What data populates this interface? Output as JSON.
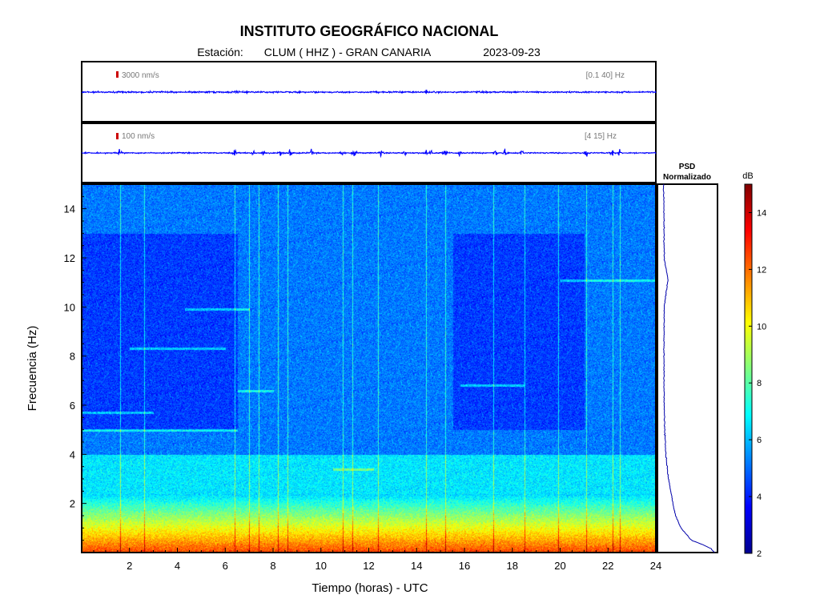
{
  "header": {
    "title": "INSTITUTO GEOGRÁFICO NACIONAL",
    "station_label": "Estación:",
    "station": "CLUM ( HHZ ) - GRAN CANARIA",
    "date": "2023-09-23"
  },
  "chart_data": [
    {
      "type": "line",
      "name": "seismogram-broadband",
      "scale_label": "3000 nm/s",
      "filter_label": "[0.1 40] Hz",
      "x_range_hours": [
        0,
        24
      ],
      "colors": {
        "trace": "#0000ff",
        "scale_bar": "#cc0000"
      },
      "spikes_hours": [
        6.4,
        14.4
      ]
    },
    {
      "type": "line",
      "name": "seismogram-filtered",
      "scale_label": "100 nm/s",
      "filter_label": "[4 15] Hz",
      "x_range_hours": [
        0,
        24
      ],
      "colors": {
        "trace": "#0000ff",
        "scale_bar": "#cc0000"
      },
      "bursts_hours": [
        1.6,
        6.4,
        7.2,
        7.6,
        8.3,
        8.7,
        9.6,
        10.9,
        11.4,
        12.5,
        13.5,
        14.4,
        14.6,
        15.2,
        15.8,
        17.3,
        17.7,
        18.4,
        21.1,
        22.2,
        22.5
      ]
    },
    {
      "type": "heatmap",
      "name": "spectrogram",
      "xlabel": "Tiempo (horas) - UTC",
      "ylabel": "Frecuencia  (Hz)",
      "x_ticks": [
        2,
        4,
        6,
        8,
        10,
        12,
        14,
        16,
        18,
        20,
        22,
        24
      ],
      "y_ticks": [
        2,
        4,
        6,
        8,
        10,
        12,
        14
      ],
      "xlim": [
        0,
        24
      ],
      "ylim": [
        0,
        15
      ],
      "color_scale": "jet",
      "vertical_lines_hours": [
        1.6,
        2.6,
        6.4,
        7.0,
        7.4,
        8.2,
        8.6,
        10.9,
        11.3,
        12.4,
        14.4,
        15.2,
        17.2,
        18.5,
        19.9,
        21.1,
        22.2,
        22.5
      ],
      "horizontal_lines": [
        {
          "hz": 5.7,
          "from_h": 0.0,
          "to_h": 3.0
        },
        {
          "hz": 5.0,
          "from_h": 0.0,
          "to_h": 6.5
        },
        {
          "hz": 6.6,
          "from_h": 6.5,
          "to_h": 8.0
        },
        {
          "hz": 6.8,
          "from_h": 15.8,
          "to_h": 18.5
        },
        {
          "hz": 11.1,
          "from_h": 20.0,
          "to_h": 24.0
        },
        {
          "hz": 8.3,
          "from_h": 2.0,
          "to_h": 6.0
        },
        {
          "hz": 9.9,
          "from_h": 4.3,
          "to_h": 7.0
        },
        {
          "hz": 3.4,
          "from_h": 10.5,
          "to_h": 12.2
        }
      ],
      "low_freq_band_db": [
        {
          "hz_from": 0.0,
          "hz_to": 1.0,
          "db": 12.5
        },
        {
          "hz_from": 1.0,
          "hz_to": 1.6,
          "db": 10.5
        },
        {
          "hz_from": 1.6,
          "hz_to": 2.3,
          "db": 8.2
        },
        {
          "hz_from": 2.3,
          "hz_to": 4.0,
          "db": 6.6
        },
        {
          "hz_from": 4.0,
          "hz_to": 15.0,
          "db": 5.2
        }
      ]
    },
    {
      "type": "line",
      "name": "psd-normalized",
      "title_line1": "PSD",
      "title_line2": "Normalizado",
      "colors": {
        "line": "#0000aa"
      },
      "profile": [
        {
          "hz": 0.0,
          "value": 0.97
        },
        {
          "hz": 0.15,
          "value": 0.92
        },
        {
          "hz": 0.3,
          "value": 0.78
        },
        {
          "hz": 0.5,
          "value": 0.55
        },
        {
          "hz": 1.0,
          "value": 0.36
        },
        {
          "hz": 1.5,
          "value": 0.26
        },
        {
          "hz": 2.0,
          "value": 0.21
        },
        {
          "hz": 2.5,
          "value": 0.17
        },
        {
          "hz": 3.0,
          "value": 0.13
        },
        {
          "hz": 4.0,
          "value": 0.08
        },
        {
          "hz": 5.0,
          "value": 0.06
        },
        {
          "hz": 6.0,
          "value": 0.05
        },
        {
          "hz": 8.0,
          "value": 0.045
        },
        {
          "hz": 10.0,
          "value": 0.05
        },
        {
          "hz": 11.1,
          "value": 0.12
        },
        {
          "hz": 12.0,
          "value": 0.05
        },
        {
          "hz": 14.0,
          "value": 0.045
        },
        {
          "hz": 15.0,
          "value": 0.04
        }
      ]
    },
    {
      "type": "heatmap",
      "name": "colorbar",
      "unit": "dB",
      "ticks": [
        2,
        4,
        6,
        8,
        10,
        12,
        14
      ],
      "range": [
        2,
        15
      ]
    }
  ]
}
